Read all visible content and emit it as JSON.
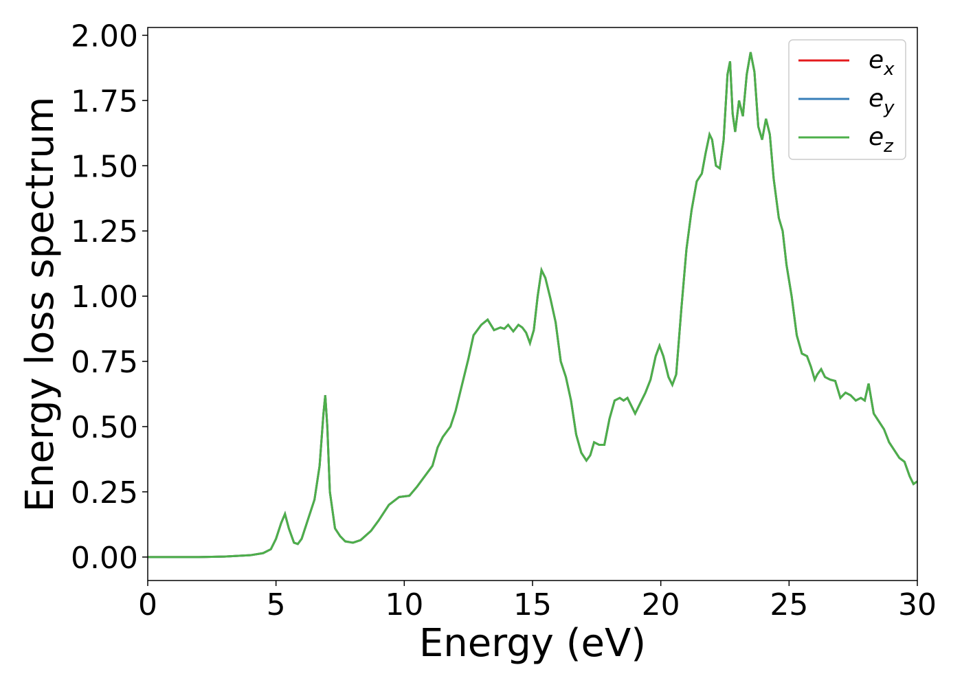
{
  "chart_data": {
    "type": "line",
    "xlabel": "Energy (eV)",
    "ylabel": "Energy loss spectrum",
    "x": [
      0,
      1,
      2,
      3,
      4,
      4.5,
      4.8,
      5.0,
      5.2,
      5.35,
      5.5,
      5.7,
      5.85,
      6.0,
      6.2,
      6.5,
      6.7,
      6.85,
      6.92,
      7.0,
      7.1,
      7.3,
      7.5,
      7.7,
      8.0,
      8.3,
      8.7,
      9.0,
      9.4,
      9.8,
      10.2,
      10.5,
      10.8,
      11.1,
      11.3,
      11.5,
      11.8,
      12.0,
      12.2,
      12.5,
      12.7,
      13.0,
      13.25,
      13.5,
      13.75,
      13.9,
      14.05,
      14.25,
      14.45,
      14.6,
      14.75,
      14.9,
      15.05,
      15.2,
      15.35,
      15.5,
      15.7,
      15.9,
      16.1,
      16.3,
      16.5,
      16.7,
      16.9,
      17.1,
      17.25,
      17.4,
      17.6,
      17.8,
      18.0,
      18.2,
      18.4,
      18.55,
      18.7,
      18.85,
      19.0,
      19.2,
      19.4,
      19.6,
      19.8,
      19.95,
      20.1,
      20.3,
      20.45,
      20.6,
      20.8,
      21.0,
      21.2,
      21.4,
      21.6,
      21.75,
      21.9,
      22.0,
      22.15,
      22.3,
      22.45,
      22.6,
      22.7,
      22.8,
      22.9,
      23.05,
      23.2,
      23.35,
      23.5,
      23.65,
      23.8,
      23.95,
      24.1,
      24.25,
      24.4,
      24.6,
      24.75,
      24.9,
      25.1,
      25.3,
      25.5,
      25.7,
      25.85,
      26.0,
      26.1,
      26.25,
      26.4,
      26.6,
      26.8,
      27.0,
      27.2,
      27.4,
      27.6,
      27.8,
      27.95,
      28.1,
      28.3,
      28.5,
      28.7,
      28.9,
      29.1,
      29.3,
      29.5,
      29.7,
      29.85,
      30.0
    ],
    "series": [
      {
        "name": "ex",
        "color": "#e41a1c",
        "values": [
          0,
          0,
          0,
          0.002,
          0.007,
          0.015,
          0.03,
          0.07,
          0.13,
          0.165,
          0.11,
          0.055,
          0.05,
          0.07,
          0.13,
          0.22,
          0.35,
          0.55,
          0.62,
          0.5,
          0.25,
          0.11,
          0.08,
          0.06,
          0.055,
          0.065,
          0.1,
          0.14,
          0.2,
          0.23,
          0.235,
          0.27,
          0.31,
          0.35,
          0.42,
          0.46,
          0.5,
          0.56,
          0.64,
          0.76,
          0.85,
          0.89,
          0.91,
          0.87,
          0.88,
          0.875,
          0.89,
          0.865,
          0.89,
          0.88,
          0.86,
          0.82,
          0.87,
          1.0,
          1.1,
          1.07,
          0.99,
          0.9,
          0.75,
          0.69,
          0.6,
          0.47,
          0.4,
          0.37,
          0.39,
          0.44,
          0.43,
          0.43,
          0.53,
          0.6,
          0.61,
          0.6,
          0.61,
          0.58,
          0.55,
          0.59,
          0.63,
          0.68,
          0.77,
          0.81,
          0.77,
          0.69,
          0.66,
          0.7,
          0.95,
          1.18,
          1.33,
          1.44,
          1.47,
          1.55,
          1.62,
          1.6,
          1.5,
          1.49,
          1.6,
          1.85,
          1.9,
          1.7,
          1.63,
          1.75,
          1.69,
          1.85,
          1.935,
          1.86,
          1.65,
          1.6,
          1.68,
          1.62,
          1.45,
          1.3,
          1.25,
          1.12,
          1.0,
          0.85,
          0.78,
          0.77,
          0.73,
          0.68,
          0.7,
          0.72,
          0.69,
          0.68,
          0.675,
          0.61,
          0.63,
          0.62,
          0.6,
          0.61,
          0.6,
          0.665,
          0.55,
          0.52,
          0.49,
          0.44,
          0.41,
          0.38,
          0.365,
          0.31,
          0.28,
          0.29
        ]
      },
      {
        "name": "ey",
        "color": "#377eb8",
        "values": [
          0,
          0,
          0,
          0.002,
          0.007,
          0.015,
          0.03,
          0.07,
          0.13,
          0.165,
          0.11,
          0.055,
          0.05,
          0.07,
          0.13,
          0.22,
          0.35,
          0.55,
          0.62,
          0.5,
          0.25,
          0.11,
          0.08,
          0.06,
          0.055,
          0.065,
          0.1,
          0.14,
          0.2,
          0.23,
          0.235,
          0.27,
          0.31,
          0.35,
          0.42,
          0.46,
          0.5,
          0.56,
          0.64,
          0.76,
          0.85,
          0.89,
          0.91,
          0.87,
          0.88,
          0.875,
          0.89,
          0.865,
          0.89,
          0.88,
          0.86,
          0.82,
          0.87,
          1.0,
          1.1,
          1.07,
          0.99,
          0.9,
          0.75,
          0.69,
          0.6,
          0.47,
          0.4,
          0.37,
          0.39,
          0.44,
          0.43,
          0.43,
          0.53,
          0.6,
          0.61,
          0.6,
          0.61,
          0.58,
          0.55,
          0.59,
          0.63,
          0.68,
          0.77,
          0.81,
          0.77,
          0.69,
          0.66,
          0.7,
          0.95,
          1.18,
          1.33,
          1.44,
          1.47,
          1.55,
          1.62,
          1.6,
          1.5,
          1.49,
          1.6,
          1.85,
          1.9,
          1.7,
          1.63,
          1.75,
          1.69,
          1.85,
          1.935,
          1.86,
          1.65,
          1.6,
          1.68,
          1.62,
          1.45,
          1.3,
          1.25,
          1.12,
          1.0,
          0.85,
          0.78,
          0.77,
          0.73,
          0.68,
          0.7,
          0.72,
          0.69,
          0.68,
          0.675,
          0.61,
          0.63,
          0.62,
          0.6,
          0.61,
          0.6,
          0.665,
          0.55,
          0.52,
          0.49,
          0.44,
          0.41,
          0.38,
          0.365,
          0.31,
          0.28,
          0.29
        ]
      },
      {
        "name": "ez",
        "color": "#4daf4a",
        "values": [
          0,
          0,
          0,
          0.002,
          0.007,
          0.015,
          0.03,
          0.07,
          0.13,
          0.165,
          0.11,
          0.055,
          0.05,
          0.07,
          0.13,
          0.22,
          0.35,
          0.55,
          0.62,
          0.5,
          0.25,
          0.11,
          0.08,
          0.06,
          0.055,
          0.065,
          0.1,
          0.14,
          0.2,
          0.23,
          0.235,
          0.27,
          0.31,
          0.35,
          0.42,
          0.46,
          0.5,
          0.56,
          0.64,
          0.76,
          0.85,
          0.89,
          0.91,
          0.87,
          0.88,
          0.875,
          0.89,
          0.865,
          0.89,
          0.88,
          0.86,
          0.82,
          0.87,
          1.0,
          1.1,
          1.07,
          0.99,
          0.9,
          0.75,
          0.69,
          0.6,
          0.47,
          0.4,
          0.37,
          0.39,
          0.44,
          0.43,
          0.43,
          0.53,
          0.6,
          0.61,
          0.6,
          0.61,
          0.58,
          0.55,
          0.59,
          0.63,
          0.68,
          0.77,
          0.81,
          0.77,
          0.69,
          0.66,
          0.7,
          0.95,
          1.18,
          1.33,
          1.44,
          1.47,
          1.55,
          1.62,
          1.6,
          1.5,
          1.49,
          1.6,
          1.85,
          1.9,
          1.7,
          1.63,
          1.75,
          1.69,
          1.85,
          1.935,
          1.86,
          1.65,
          1.6,
          1.68,
          1.62,
          1.45,
          1.3,
          1.25,
          1.12,
          1.0,
          0.85,
          0.78,
          0.77,
          0.73,
          0.68,
          0.7,
          0.72,
          0.69,
          0.68,
          0.675,
          0.61,
          0.63,
          0.62,
          0.6,
          0.61,
          0.6,
          0.665,
          0.55,
          0.52,
          0.49,
          0.44,
          0.41,
          0.38,
          0.365,
          0.31,
          0.28,
          0.29
        ]
      }
    ],
    "xlim": [
      0,
      30
    ],
    "xticks": [
      0,
      5,
      10,
      15,
      20,
      25,
      30
    ],
    "ylim": [
      -0.09,
      2.03
    ],
    "yticks": [
      {
        "value": 0,
        "label": "0.00"
      },
      {
        "value": 0.25,
        "label": "0.25"
      },
      {
        "value": 0.5,
        "label": "0.50"
      },
      {
        "value": 0.75,
        "label": "0.75"
      },
      {
        "value": 1,
        "label": "1.00"
      },
      {
        "value": 1.25,
        "label": "1.25"
      },
      {
        "value": 1.5,
        "label": "1.50"
      },
      {
        "value": 1.75,
        "label": "1.75"
      },
      {
        "value": 2,
        "label": "2.00"
      }
    ],
    "grid": false,
    "legend": "upper right"
  }
}
